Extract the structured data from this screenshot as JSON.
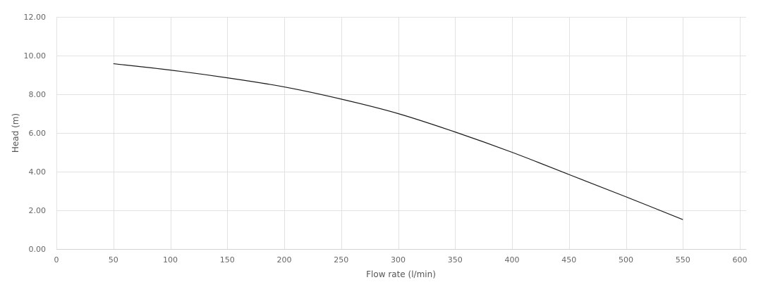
{
  "chart_data": {
    "type": "line",
    "title": "",
    "xlabel": "Flow rate (l/min)",
    "ylabel": "Head (m)",
    "xlim": [
      0,
      600
    ],
    "ylim": [
      0,
      12
    ],
    "x_ticks": [
      "0",
      "50",
      "100",
      "150",
      "200",
      "250",
      "300",
      "350",
      "400",
      "450",
      "500",
      "550",
      "600"
    ],
    "y_ticks": [
      "0.00",
      "2.00",
      "4.00",
      "6.00",
      "8.00",
      "10.00",
      "12.00"
    ],
    "grid": true,
    "legend": "none",
    "series": [
      {
        "color": "#1a1a1a",
        "x": [
          50,
          100,
          150,
          200,
          250,
          300,
          350,
          400,
          450,
          500,
          550
        ],
        "y": [
          9.58,
          9.25,
          8.85,
          8.38,
          7.75,
          7.0,
          6.05,
          5.0,
          3.85,
          2.7,
          1.52
        ]
      }
    ]
  }
}
